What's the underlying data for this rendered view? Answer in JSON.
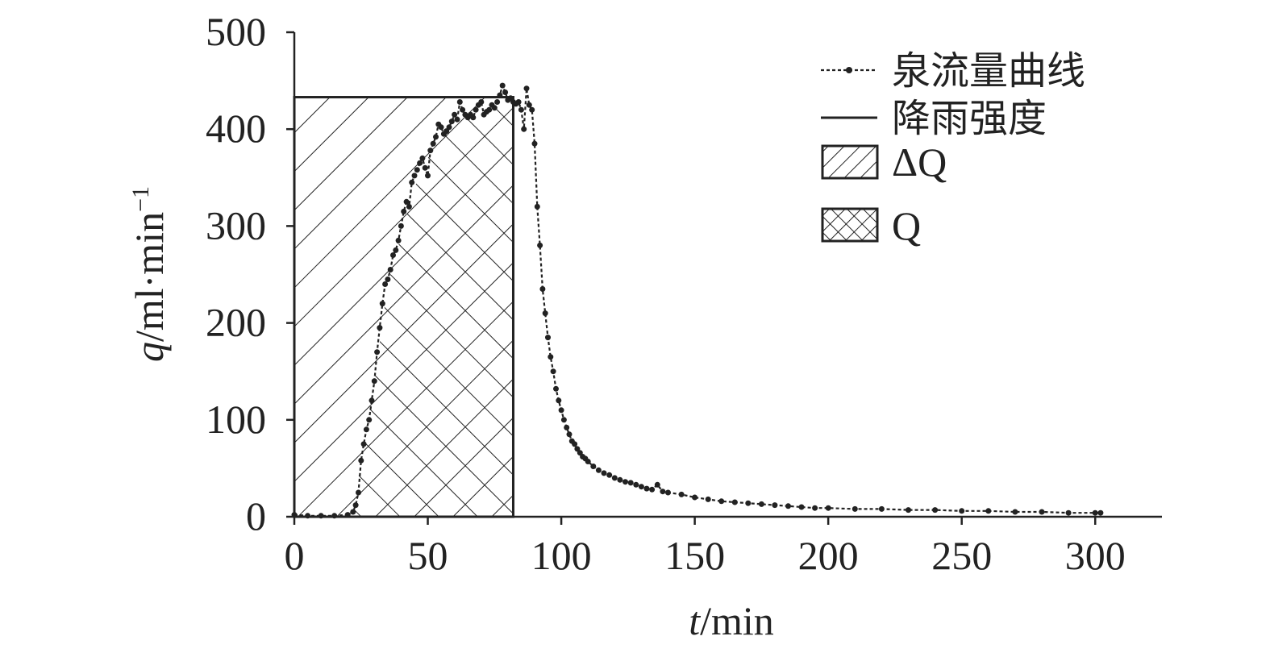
{
  "chart_data": {
    "type": "line",
    "xlabel_italic": "t",
    "xlabel_unit": "/min",
    "ylabel_italic": "q",
    "ylabel_unit": "/ml·min",
    "ylabel_sup": "−1",
    "xlim": [
      0,
      325
    ],
    "ylim": [
      0,
      500
    ],
    "xticks": [
      "0",
      "50",
      "100",
      "150",
      "200",
      "250",
      "300"
    ],
    "yticks": [
      "0",
      "100",
      "200",
      "300",
      "400",
      "500"
    ],
    "legend_position": "top-right",
    "legend": {
      "flow": "泉流量曲线",
      "rain": "降雨强度",
      "delta_q": "ΔQ",
      "q": "Q"
    },
    "rainfall": {
      "start": 0,
      "end": 82,
      "intensity": 433
    },
    "region_split": [
      {
        "x": 0,
        "y": 0
      },
      {
        "x": 22,
        "y": 0
      },
      {
        "x": 25,
        "y": 60
      },
      {
        "x": 30,
        "y": 140
      },
      {
        "x": 35,
        "y": 240
      },
      {
        "x": 40,
        "y": 290
      },
      {
        "x": 45,
        "y": 340
      },
      {
        "x": 50,
        "y": 370
      },
      {
        "x": 55,
        "y": 395
      },
      {
        "x": 60,
        "y": 410
      },
      {
        "x": 70,
        "y": 418
      },
      {
        "x": 78,
        "y": 433
      },
      {
        "x": 82,
        "y": 433
      }
    ],
    "series": [
      {
        "points": [
          {
            "x": 0,
            "y": 2
          },
          {
            "x": 5,
            "y": 1
          },
          {
            "x": 10,
            "y": 1
          },
          {
            "x": 15,
            "y": 1
          },
          {
            "x": 20,
            "y": 2
          },
          {
            "x": 22,
            "y": 5
          },
          {
            "x": 23,
            "y": 12
          },
          {
            "x": 24,
            "y": 25
          },
          {
            "x": 25,
            "y": 58
          },
          {
            "x": 26,
            "y": 75
          },
          {
            "x": 27,
            "y": 90
          },
          {
            "x": 28,
            "y": 100
          },
          {
            "x": 29,
            "y": 120
          },
          {
            "x": 30,
            "y": 140
          },
          {
            "x": 31,
            "y": 170
          },
          {
            "x": 32,
            "y": 195
          },
          {
            "x": 33,
            "y": 220
          },
          {
            "x": 34,
            "y": 240
          },
          {
            "x": 35,
            "y": 245
          },
          {
            "x": 36,
            "y": 255
          },
          {
            "x": 37,
            "y": 270
          },
          {
            "x": 38,
            "y": 275
          },
          {
            "x": 39,
            "y": 285
          },
          {
            "x": 40,
            "y": 300
          },
          {
            "x": 41,
            "y": 315
          },
          {
            "x": 42,
            "y": 325
          },
          {
            "x": 43,
            "y": 320
          },
          {
            "x": 44,
            "y": 345
          },
          {
            "x": 45,
            "y": 352
          },
          {
            "x": 46,
            "y": 358
          },
          {
            "x": 47,
            "y": 365
          },
          {
            "x": 48,
            "y": 370
          },
          {
            "x": 49,
            "y": 360
          },
          {
            "x": 50,
            "y": 352
          },
          {
            "x": 51,
            "y": 378
          },
          {
            "x": 52,
            "y": 385
          },
          {
            "x": 53,
            "y": 392
          },
          {
            "x": 54,
            "y": 405
          },
          {
            "x": 55,
            "y": 402
          },
          {
            "x": 56,
            "y": 395
          },
          {
            "x": 57,
            "y": 398
          },
          {
            "x": 58,
            "y": 402
          },
          {
            "x": 59,
            "y": 408
          },
          {
            "x": 60,
            "y": 415
          },
          {
            "x": 61,
            "y": 410
          },
          {
            "x": 62,
            "y": 428
          },
          {
            "x": 63,
            "y": 420
          },
          {
            "x": 64,
            "y": 415
          },
          {
            "x": 65,
            "y": 412
          },
          {
            "x": 66,
            "y": 415
          },
          {
            "x": 67,
            "y": 412
          },
          {
            "x": 68,
            "y": 420
          },
          {
            "x": 69,
            "y": 425
          },
          {
            "x": 70,
            "y": 428
          },
          {
            "x": 71,
            "y": 415
          },
          {
            "x": 72,
            "y": 418
          },
          {
            "x": 73,
            "y": 420
          },
          {
            "x": 74,
            "y": 425
          },
          {
            "x": 75,
            "y": 422
          },
          {
            "x": 76,
            "y": 428
          },
          {
            "x": 77,
            "y": 435
          },
          {
            "x": 78,
            "y": 445
          },
          {
            "x": 79,
            "y": 438
          },
          {
            "x": 80,
            "y": 430
          },
          {
            "x": 81,
            "y": 432
          },
          {
            "x": 82,
            "y": 428
          },
          {
            "x": 83,
            "y": 426
          },
          {
            "x": 84,
            "y": 428
          },
          {
            "x": 85,
            "y": 420
          },
          {
            "x": 86,
            "y": 400
          },
          {
            "x": 87,
            "y": 442
          },
          {
            "x": 88,
            "y": 425
          },
          {
            "x": 89,
            "y": 420
          },
          {
            "x": 90,
            "y": 385
          },
          {
            "x": 91,
            "y": 320
          },
          {
            "x": 92,
            "y": 280
          },
          {
            "x": 93,
            "y": 235
          },
          {
            "x": 94,
            "y": 210
          },
          {
            "x": 95,
            "y": 185
          },
          {
            "x": 96,
            "y": 165
          },
          {
            "x": 97,
            "y": 150
          },
          {
            "x": 98,
            "y": 132
          },
          {
            "x": 99,
            "y": 120
          },
          {
            "x": 100,
            "y": 110
          },
          {
            "x": 101,
            "y": 100
          },
          {
            "x": 102,
            "y": 92
          },
          {
            "x": 103,
            "y": 85
          },
          {
            "x": 104,
            "y": 78
          },
          {
            "x": 105,
            "y": 75
          },
          {
            "x": 106,
            "y": 70
          },
          {
            "x": 107,
            "y": 66
          },
          {
            "x": 108,
            "y": 62
          },
          {
            "x": 109,
            "y": 60
          },
          {
            "x": 110,
            "y": 57
          },
          {
            "x": 112,
            "y": 52
          },
          {
            "x": 114,
            "y": 48
          },
          {
            "x": 116,
            "y": 45
          },
          {
            "x": 118,
            "y": 43
          },
          {
            "x": 120,
            "y": 40
          },
          {
            "x": 122,
            "y": 38
          },
          {
            "x": 124,
            "y": 36
          },
          {
            "x": 126,
            "y": 35
          },
          {
            "x": 128,
            "y": 33
          },
          {
            "x": 130,
            "y": 31
          },
          {
            "x": 132,
            "y": 29
          },
          {
            "x": 134,
            "y": 28
          },
          {
            "x": 136,
            "y": 33
          },
          {
            "x": 138,
            "y": 26
          },
          {
            "x": 140,
            "y": 25
          },
          {
            "x": 145,
            "y": 23
          },
          {
            "x": 150,
            "y": 20
          },
          {
            "x": 155,
            "y": 18
          },
          {
            "x": 160,
            "y": 16
          },
          {
            "x": 165,
            "y": 15
          },
          {
            "x": 170,
            "y": 14
          },
          {
            "x": 175,
            "y": 13
          },
          {
            "x": 180,
            "y": 12
          },
          {
            "x": 185,
            "y": 11
          },
          {
            "x": 190,
            "y": 10
          },
          {
            "x": 195,
            "y": 9
          },
          {
            "x": 200,
            "y": 9
          },
          {
            "x": 210,
            "y": 8
          },
          {
            "x": 220,
            "y": 8
          },
          {
            "x": 230,
            "y": 7
          },
          {
            "x": 240,
            "y": 7
          },
          {
            "x": 250,
            "y": 6
          },
          {
            "x": 260,
            "y": 6
          },
          {
            "x": 270,
            "y": 5
          },
          {
            "x": 280,
            "y": 5
          },
          {
            "x": 290,
            "y": 4
          },
          {
            "x": 300,
            "y": 4
          },
          {
            "x": 302,
            "y": 4
          }
        ]
      }
    ]
  }
}
